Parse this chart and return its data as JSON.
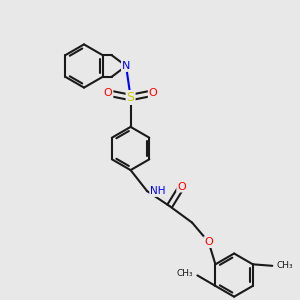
{
  "bg_color": "#e8e8e8",
  "bond_color": "#1a1a1a",
  "N_color": "#0000ff",
  "O_color": "#ff0000",
  "S_color": "#cccc00",
  "line_width": 1.5,
  "figsize": [
    3.0,
    3.0
  ],
  "dpi": 100,
  "xlim": [
    0,
    10
  ],
  "ylim": [
    0,
    10
  ]
}
